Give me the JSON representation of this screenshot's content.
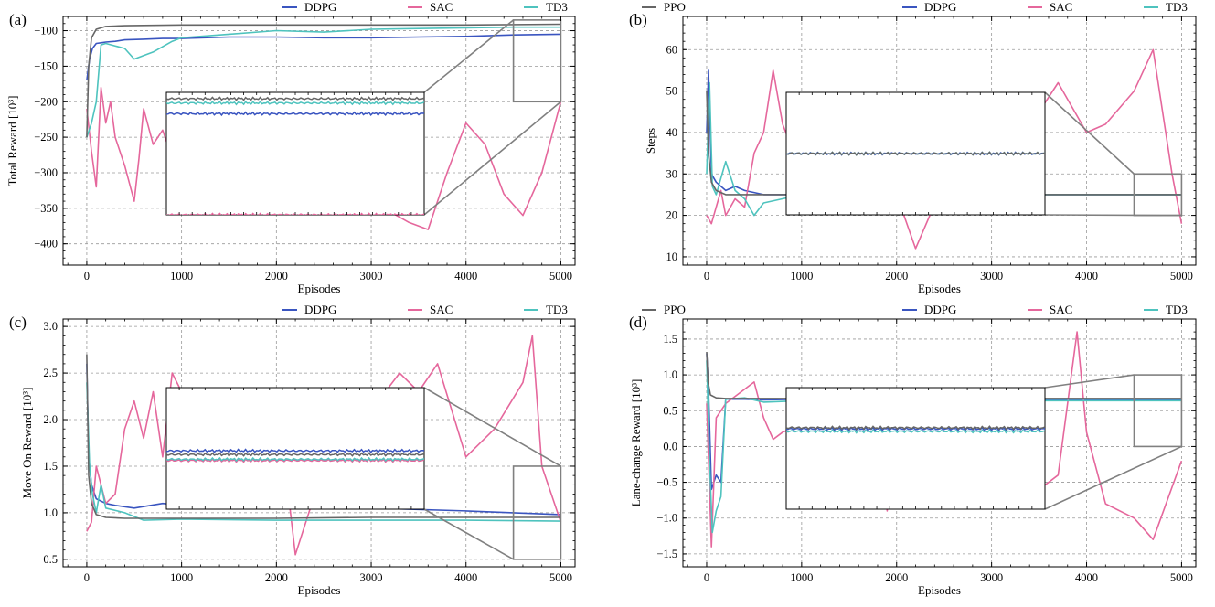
{
  "colors": {
    "DDPG": "#3a55c0",
    "SAC": "#e5679c",
    "TD3": "#4ec3be",
    "PPO": "#666666",
    "zoom_box": "#808080",
    "grid": "#9a9a9a"
  },
  "legend": [
    "DDPG",
    "SAC",
    "TD3",
    "PPO"
  ],
  "chart_data": [
    {
      "panel": "(a)",
      "type": "line",
      "xlabel": "Episodes",
      "ylabel": "Total Reward [10³]",
      "xlim": [
        -250,
        5150
      ],
      "ylim": [
        -430,
        -80
      ],
      "xticks": [
        0,
        1000,
        2000,
        3000,
        4000,
        5000
      ],
      "yticks": [
        -400,
        -350,
        -300,
        -250,
        -200,
        -150,
        -100
      ],
      "grid": true,
      "legend_position": "top",
      "inset": {
        "x_range": [
          4500,
          5000
        ],
        "y_range": [
          -200,
          -85
        ]
      },
      "series": [
        {
          "name": "DDPG",
          "x": [
            0,
            30,
            60,
            100,
            150,
            200,
            300,
            400,
            600,
            800,
            1000,
            1500,
            2000,
            2500,
            3000,
            3500,
            4000,
            4500,
            5000
          ],
          "y": [
            -170,
            -140,
            -125,
            -118,
            -117,
            -116,
            -115,
            -113,
            -112,
            -111,
            -111,
            -109,
            -109,
            -110,
            -110,
            -109,
            -108,
            -106,
            -105
          ]
        },
        {
          "name": "SAC",
          "x": [
            0,
            50,
            100,
            150,
            200,
            250,
            300,
            400,
            500,
            550,
            600,
            700,
            800,
            900,
            1000,
            1500,
            2000,
            2500,
            3000,
            3400,
            3600,
            3800,
            4000,
            4200,
            4400,
            4600,
            4800,
            5000
          ],
          "y": [
            -210,
            -270,
            -320,
            -180,
            -230,
            -200,
            -250,
            -290,
            -340,
            -280,
            -210,
            -260,
            -240,
            -280,
            -240,
            -300,
            -280,
            -320,
            -340,
            -370,
            -380,
            -300,
            -230,
            -260,
            -330,
            -360,
            -300,
            -200
          ]
        },
        {
          "name": "TD3",
          "x": [
            0,
            50,
            100,
            150,
            200,
            400,
            500,
            600,
            700,
            900,
            1000,
            1500,
            2000,
            2500,
            3000,
            3500,
            4000,
            4500,
            5000
          ],
          "y": [
            -250,
            -230,
            -200,
            -120,
            -118,
            -125,
            -140,
            -135,
            -130,
            -115,
            -110,
            -105,
            -100,
            -102,
            -98,
            -97,
            -96,
            -95,
            -95
          ]
        },
        {
          "name": "PPO",
          "x": [
            0,
            20,
            50,
            100,
            200,
            400,
            1000,
            2000,
            3000,
            4000,
            5000
          ],
          "y": [
            -250,
            -150,
            -110,
            -98,
            -94,
            -93,
            -92,
            -92,
            -92,
            -92,
            -91
          ]
        }
      ]
    },
    {
      "panel": "(b)",
      "type": "line",
      "xlabel": "Episodes",
      "ylabel": "Steps",
      "xlim": [
        -250,
        5150
      ],
      "ylim": [
        8,
        68
      ],
      "xticks": [
        0,
        1000,
        2000,
        3000,
        4000,
        5000
      ],
      "yticks": [
        10,
        20,
        30,
        40,
        50,
        60
      ],
      "grid": true,
      "legend_position": "top",
      "inset": {
        "x_range": [
          4500,
          5000
        ],
        "y_range": [
          20,
          30
        ]
      },
      "series": [
        {
          "name": "DDPG",
          "x": [
            0,
            20,
            50,
            100,
            200,
            300,
            400,
            600,
            1000,
            2000,
            3000,
            4000,
            5000
          ],
          "y": [
            40,
            55,
            30,
            28,
            26,
            27,
            26,
            25,
            25,
            25,
            25,
            25,
            25
          ]
        },
        {
          "name": "SAC",
          "x": [
            0,
            50,
            100,
            150,
            200,
            300,
            400,
            500,
            600,
            700,
            800,
            1000,
            1500,
            2000,
            2200,
            2500,
            3000,
            3500,
            3700,
            4000,
            4200,
            4500,
            4700,
            4900,
            5000
          ],
          "y": [
            20,
            18,
            22,
            26,
            20,
            24,
            22,
            35,
            40,
            55,
            42,
            30,
            35,
            25,
            12,
            28,
            40,
            45,
            52,
            40,
            42,
            50,
            60,
            30,
            18
          ]
        },
        {
          "name": "TD3",
          "x": [
            0,
            30,
            60,
            100,
            200,
            300,
            400,
            500,
            600,
            1000,
            2000,
            3000,
            4000,
            5000
          ],
          "y": [
            30,
            52,
            27,
            25,
            33,
            26,
            24,
            20,
            23,
            25,
            25,
            25,
            25,
            25
          ]
        },
        {
          "name": "PPO",
          "x": [
            0,
            20,
            50,
            100,
            200,
            500,
            1000,
            2000,
            3000,
            4000,
            5000
          ],
          "y": [
            50,
            35,
            28,
            26,
            25,
            25,
            25,
            25,
            25,
            25,
            25
          ]
        }
      ]
    },
    {
      "panel": "(c)",
      "type": "line",
      "xlabel": "Episodes",
      "ylabel": "Move On Reward [10³]",
      "xlim": [
        -250,
        5150
      ],
      "ylim": [
        0.42,
        3.08
      ],
      "xticks": [
        0,
        1000,
        2000,
        3000,
        4000,
        5000
      ],
      "yticks": [
        0.5,
        1.0,
        1.5,
        2.0,
        2.5,
        3.0
      ],
      "grid": true,
      "legend_position": "top",
      "inset": {
        "x_range": [
          4500,
          5000
        ],
        "y_range": [
          0.5,
          1.5
        ]
      },
      "series": [
        {
          "name": "DDPG",
          "x": [
            0,
            20,
            50,
            100,
            200,
            300,
            500,
            800,
            1000,
            2000,
            3000,
            4000,
            5000
          ],
          "y": [
            2.6,
            1.6,
            1.3,
            1.15,
            1.1,
            1.08,
            1.05,
            1.1,
            1.08,
            1.06,
            1.05,
            1.02,
            0.98
          ]
        },
        {
          "name": "SAC",
          "x": [
            0,
            50,
            100,
            200,
            300,
            400,
            500,
            600,
            700,
            800,
            900,
            1000,
            1500,
            2000,
            2200,
            2500,
            3000,
            3300,
            3500,
            3700,
            4000,
            4300,
            4600,
            4700,
            4800,
            5000
          ],
          "y": [
            0.8,
            0.9,
            1.5,
            1.1,
            1.2,
            1.9,
            2.2,
            1.8,
            2.3,
            1.6,
            2.5,
            2.3,
            2.0,
            2.3,
            0.55,
            1.5,
            2.1,
            2.5,
            2.3,
            2.6,
            1.6,
            1.9,
            2.4,
            2.9,
            1.5,
            0.9
          ]
        },
        {
          "name": "TD3",
          "x": [
            0,
            30,
            60,
            100,
            150,
            200,
            400,
            600,
            1000,
            2000,
            3000,
            4000,
            5000
          ],
          "y": [
            2.4,
            1.5,
            1.2,
            1.0,
            1.3,
            1.05,
            1.0,
            0.92,
            0.93,
            0.92,
            0.92,
            0.92,
            0.91
          ]
        },
        {
          "name": "PPO",
          "x": [
            0,
            20,
            50,
            100,
            200,
            400,
            1000,
            2000,
            3000,
            4000,
            5000
          ],
          "y": [
            2.7,
            1.4,
            1.1,
            0.98,
            0.95,
            0.94,
            0.94,
            0.94,
            0.95,
            0.95,
            0.95
          ]
        }
      ]
    },
    {
      "panel": "(d)",
      "type": "line",
      "xlabel": "Episodes",
      "ylabel": "Lane-change Reward [10³]",
      "xlim": [
        -250,
        5150
      ],
      "ylim": [
        -1.68,
        1.78
      ],
      "xticks": [
        0,
        1000,
        2000,
        3000,
        4000,
        5000
      ],
      "yticks": [
        -1.5,
        -1.0,
        -0.5,
        0.0,
        0.5,
        1.0,
        1.5
      ],
      "grid": true,
      "legend_position": "top",
      "inset": {
        "x_range": [
          4500,
          5000
        ],
        "y_range": [
          0.0,
          1.0
        ]
      },
      "series": [
        {
          "name": "DDPG",
          "x": [
            0,
            20,
            50,
            100,
            150,
            200,
            400,
            600,
            1000,
            2000,
            3000,
            4000,
            5000
          ],
          "y": [
            1.3,
            0.8,
            -0.6,
            -0.4,
            -0.5,
            0.66,
            0.66,
            0.65,
            0.66,
            0.66,
            0.66,
            0.66,
            0.66
          ]
        },
        {
          "name": "SAC",
          "x": [
            0,
            50,
            100,
            200,
            300,
            500,
            600,
            700,
            800,
            1000,
            1500,
            1800,
            1900,
            2000,
            2500,
            3000,
            3500,
            3700,
            3900,
            4000,
            4200,
            4500,
            4700,
            5000
          ],
          "y": [
            0.6,
            -1.4,
            0.4,
            0.6,
            0.7,
            0.9,
            0.4,
            0.1,
            0.2,
            0.3,
            0.2,
            0.5,
            -0.9,
            0.3,
            0.1,
            0.4,
            -0.6,
            -0.4,
            1.6,
            0.2,
            -0.8,
            -1.0,
            -1.3,
            -0.2
          ]
        },
        {
          "name": "TD3",
          "x": [
            0,
            30,
            60,
            100,
            150,
            200,
            400,
            600,
            1000,
            2000,
            3000,
            4000,
            5000
          ],
          "y": [
            1.2,
            -0.2,
            -1.2,
            -0.9,
            -0.7,
            0.66,
            0.68,
            0.62,
            0.64,
            0.64,
            0.64,
            0.64,
            0.64
          ]
        },
        {
          "name": "PPO",
          "x": [
            0,
            15,
            40,
            100,
            200,
            500,
            1000,
            2000,
            3000,
            4000,
            5000
          ],
          "y": [
            1.32,
            0.9,
            0.72,
            0.68,
            0.67,
            0.67,
            0.67,
            0.67,
            0.67,
            0.67,
            0.67
          ]
        }
      ]
    }
  ]
}
